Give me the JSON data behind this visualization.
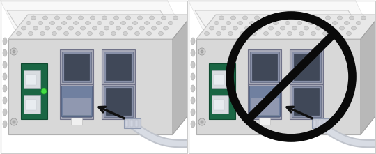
{
  "fig_width": 5.4,
  "fig_height": 2.21,
  "dpi": 100,
  "bg_color": "#ffffff",
  "chassis_top_color": "#e8e8e8",
  "chassis_front_color": "#d0d0d0",
  "chassis_side_color": "#b8b8b8",
  "vent_hole_color": "#c0c0c0",
  "vent_hole_edge": "#a0a0a0",
  "port_outer_color": "#a8aab8",
  "port_inner_color": "#7880a0",
  "port_dark_color": "#606880",
  "sfp_body_color": "#808898",
  "sfp_dark_color": "#505860",
  "sfp_latch_color": "#f0f0f0",
  "green_bg_color": "#1a6644",
  "green_port_color": "#c8d0d8",
  "cable_outer_color": "#c0c4cc",
  "cable_inner_color": "#d8dce4",
  "cable_shadow_color": "#9098a8",
  "connector_color": "#c8ccd8",
  "arrow_color": "#111111",
  "no_symbol_color": "#0a0a0a",
  "no_symbol_lw": 7.0,
  "panel_border_color": "#cccccc",
  "divider_color": "#cccccc",
  "screw_color": "#d0d0d0",
  "white_top_color": "#f5f5f5",
  "ledge_color": "#e0e0e0"
}
